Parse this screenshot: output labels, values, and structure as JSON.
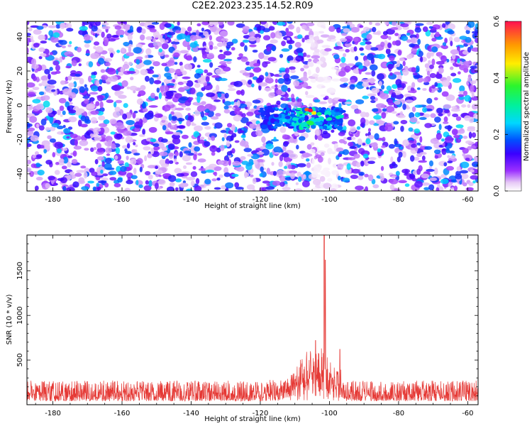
{
  "title": "C2E2.2023.235.14.52.R09",
  "chart_data": [
    {
      "type": "heatmap",
      "xlabel": "Height of straight line (km)",
      "ylabel": "Frequency (Hz)",
      "xlim": [
        -187.5,
        -57
      ],
      "ylim": [
        -50,
        49
      ],
      "xticks": [
        "-180",
        "-160",
        "-140",
        "-120",
        "-100",
        "-80",
        "-60"
      ],
      "yticks": [
        "-40",
        "-20",
        "0",
        "20",
        "40"
      ],
      "colorbar": {
        "label": "Normalized spectral amplitude",
        "range": [
          0.0,
          0.6
        ],
        "ticks": [
          "0.0",
          "0.2",
          "0.4",
          "0.6"
        ]
      },
      "features": {
        "background": "scattered purple/violet noise blobs over the whole field",
        "gap_region_x": [
          -106,
          -98
        ],
        "hotspot": {
          "x": [
            -120,
            -96
          ],
          "y": [
            -15,
            0
          ],
          "peak_value": 0.6,
          "peak_x": -106,
          "peak_y": -3
        }
      }
    },
    {
      "type": "line",
      "xlabel": "Height of straight line (km)",
      "ylabel": "SNR (10 * v/v)",
      "xlim": [
        -187.5,
        -57
      ],
      "ylim": [
        0,
        1900
      ],
      "xticks": [
        "-180",
        "-160",
        "-140",
        "-120",
        "-100",
        "-80",
        "-60"
      ],
      "yticks": [
        "500",
        "1000",
        "1500"
      ],
      "color": "#e53935",
      "series_summary": {
        "baseline_range": [
          40,
          300
        ],
        "rising_region_x": [
          -120,
          -96
        ],
        "local_peaks": [
          {
            "x": -104,
            "y": 720
          },
          {
            "x": -101.5,
            "y": 1900
          },
          {
            "x": -101.2,
            "y": 1620
          },
          {
            "x": -97,
            "y": 620
          }
        ]
      }
    }
  ]
}
